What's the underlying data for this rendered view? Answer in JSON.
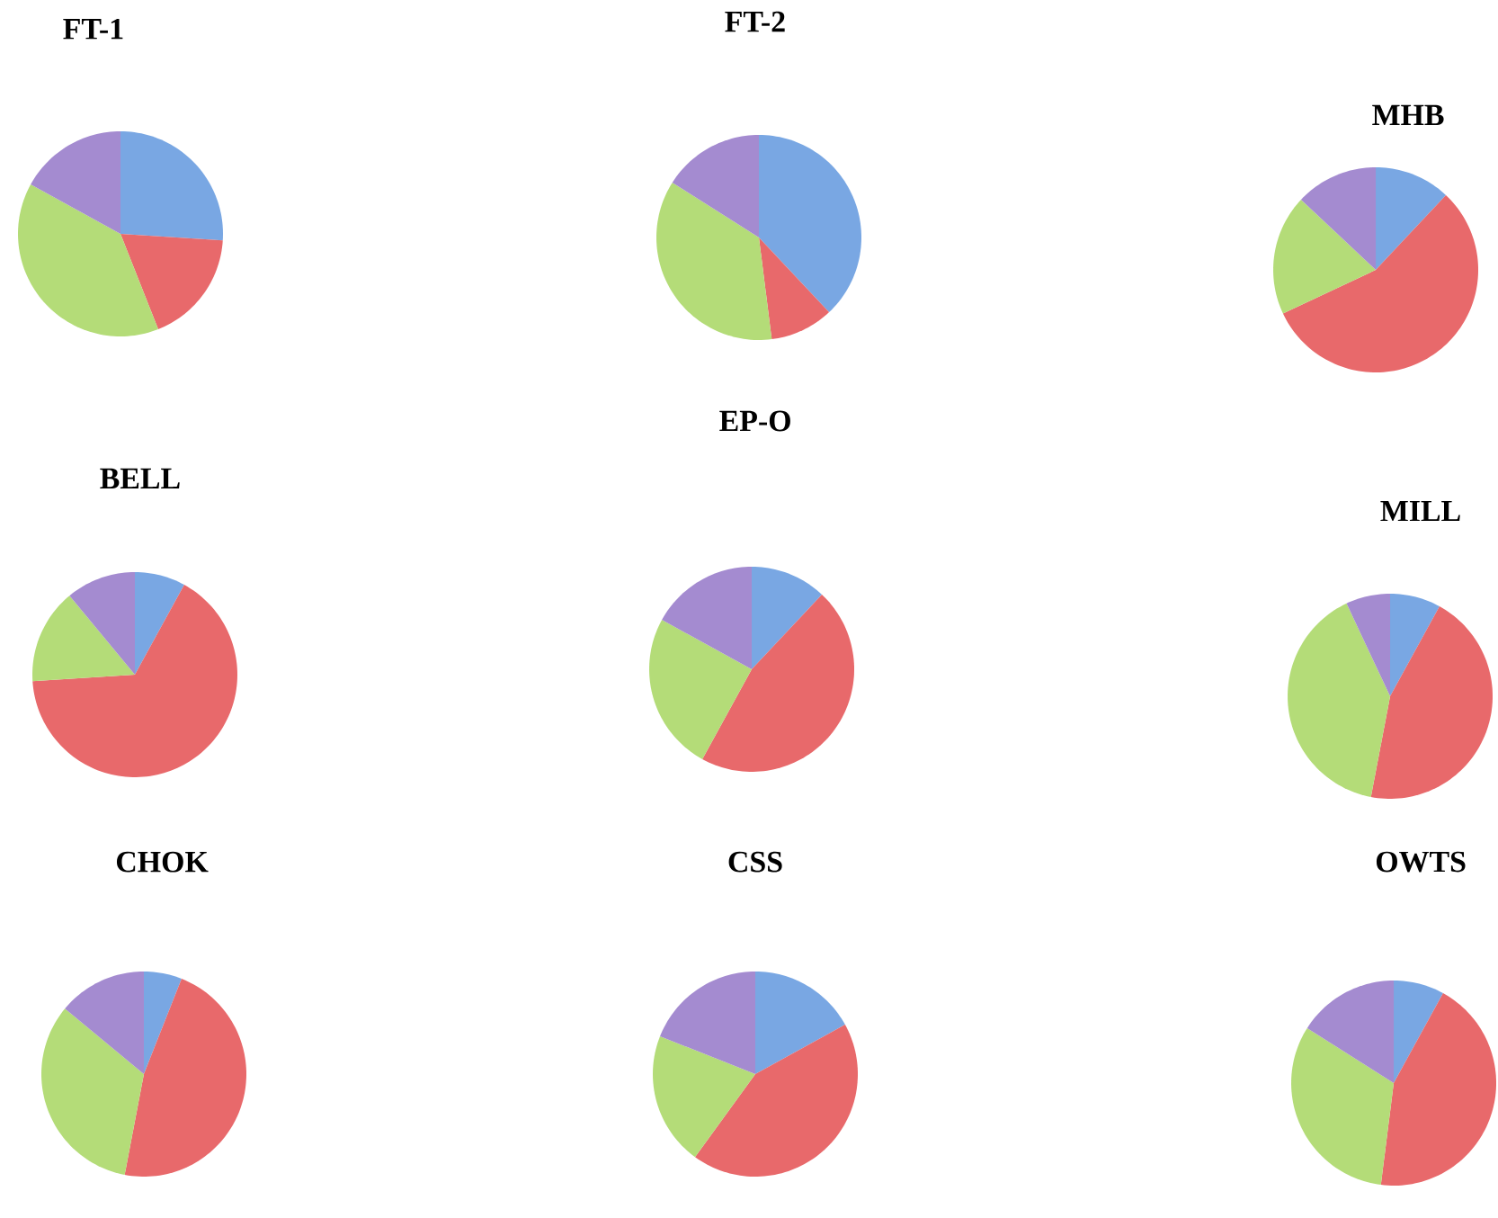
{
  "chart_data": [
    {
      "type": "pie",
      "title": "FT-1",
      "categories": [
        null,
        null,
        null,
        null
      ],
      "values": [
        26,
        18,
        39,
        17
      ],
      "colors": [
        "#79a7e3",
        "#e8696b",
        "#b4dc78",
        "#a48bd0"
      ]
    },
    {
      "type": "pie",
      "title": "FT-2",
      "categories": [
        null,
        null,
        null,
        null
      ],
      "values": [
        38,
        10,
        36,
        16
      ],
      "colors": [
        "#79a7e3",
        "#e8696b",
        "#b4dc78",
        "#a48bd0"
      ]
    },
    {
      "type": "pie",
      "title": "MHB",
      "categories": [
        null,
        null,
        null,
        null
      ],
      "values": [
        12,
        56,
        19,
        13
      ],
      "colors": [
        "#79a7e3",
        "#e8696b",
        "#b4dc78",
        "#a48bd0"
      ]
    },
    {
      "type": "pie",
      "title": "BELL",
      "categories": [
        null,
        null,
        null,
        null
      ],
      "values": [
        8,
        66,
        15,
        11
      ],
      "colors": [
        "#79a7e3",
        "#e8696b",
        "#b4dc78",
        "#a48bd0"
      ]
    },
    {
      "type": "pie",
      "title": "EP-O",
      "categories": [
        null,
        null,
        null,
        null
      ],
      "values": [
        12,
        46,
        25,
        17
      ],
      "colors": [
        "#79a7e3",
        "#e8696b",
        "#b4dc78",
        "#a48bd0"
      ]
    },
    {
      "type": "pie",
      "title": "MILL",
      "categories": [
        null,
        null,
        null,
        null
      ],
      "values": [
        8,
        45,
        40,
        7
      ],
      "colors": [
        "#79a7e3",
        "#e8696b",
        "#b4dc78",
        "#a48bd0"
      ]
    },
    {
      "type": "pie",
      "title": "CHOK",
      "categories": [
        null,
        null,
        null,
        null
      ],
      "values": [
        6,
        47,
        33,
        14
      ],
      "colors": [
        "#79a7e3",
        "#e8696b",
        "#b4dc78",
        "#a48bd0"
      ]
    },
    {
      "type": "pie",
      "title": "CSS",
      "categories": [
        null,
        null,
        null,
        null
      ],
      "values": [
        17,
        43,
        21,
        19
      ],
      "colors": [
        "#79a7e3",
        "#e8696b",
        "#b4dc78",
        "#a48bd0"
      ]
    },
    {
      "type": "pie",
      "title": "OWTS",
      "categories": [
        null,
        null,
        null,
        null
      ],
      "values": [
        8,
        44,
        32,
        16
      ],
      "colors": [
        "#79a7e3",
        "#e8696b",
        "#b4dc78",
        "#a48bd0"
      ]
    }
  ]
}
